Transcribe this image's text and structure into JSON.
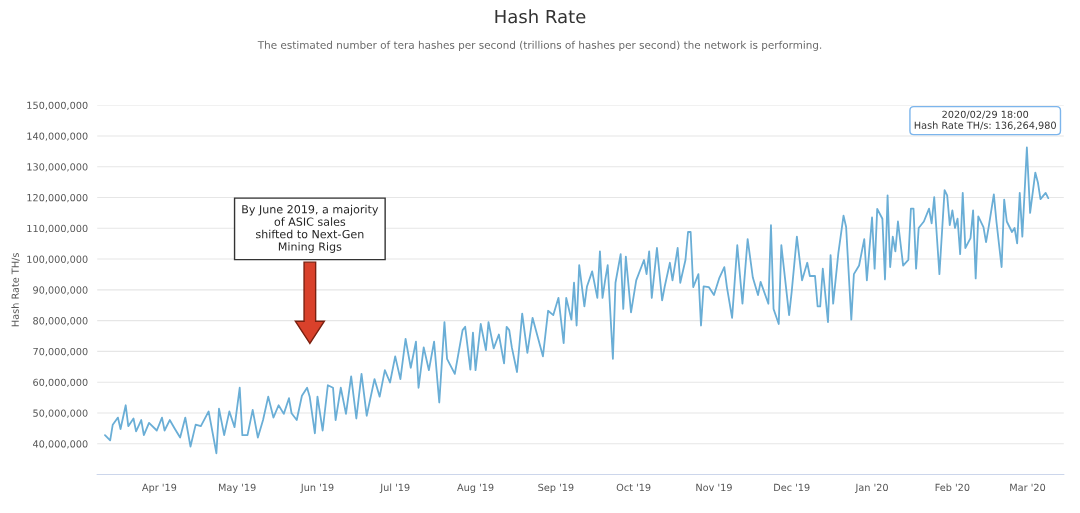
{
  "chart_data": {
    "type": "line",
    "title": "Hash Rate",
    "subtitle": "The estimated number of tera hashes per second (trillions of hashes per second) the network is performing.",
    "ylabel": "Hash Rate TH/s",
    "x": [
      "2019-03-11",
      "2019-03-13",
      "2019-03-14",
      "2019-03-16",
      "2019-03-17",
      "2019-03-19",
      "2019-03-20",
      "2019-03-22",
      "2019-03-23",
      "2019-03-25",
      "2019-03-26",
      "2019-03-28",
      "2019-03-31",
      "2019-04-02",
      "2019-04-03",
      "2019-04-05",
      "2019-04-07",
      "2019-04-09",
      "2019-04-11",
      "2019-04-13",
      "2019-04-15",
      "2019-04-17",
      "2019-04-20",
      "2019-04-23",
      "2019-04-24",
      "2019-04-26",
      "2019-04-28",
      "2019-04-30",
      "2019-05-02",
      "2019-05-03",
      "2019-05-05",
      "2019-05-07",
      "2019-05-09",
      "2019-05-11",
      "2019-05-13",
      "2019-05-15",
      "2019-05-17",
      "2019-05-19",
      "2019-05-21",
      "2019-05-22",
      "2019-05-24",
      "2019-05-26",
      "2019-05-28",
      "2019-05-29",
      "2019-05-31",
      "2019-06-01",
      "2019-06-03",
      "2019-06-05",
      "2019-06-07",
      "2019-06-08",
      "2019-06-10",
      "2019-06-12",
      "2019-06-14",
      "2019-06-16",
      "2019-06-18",
      "2019-06-20",
      "2019-06-23",
      "2019-06-25",
      "2019-06-27",
      "2019-06-29",
      "2019-07-01",
      "2019-07-03",
      "2019-07-05",
      "2019-07-07",
      "2019-07-09",
      "2019-07-10",
      "2019-07-12",
      "2019-07-14",
      "2019-07-16",
      "2019-07-18",
      "2019-07-20",
      "2019-07-21",
      "2019-07-24",
      "2019-07-27",
      "2019-07-28",
      "2019-07-30",
      "2019-07-31",
      "2019-08-01",
      "2019-08-03",
      "2019-08-05",
      "2019-08-06",
      "2019-08-08",
      "2019-08-10",
      "2019-08-12",
      "2019-08-13",
      "2019-08-14",
      "2019-08-15",
      "2019-08-17",
      "2019-08-19",
      "2019-08-21",
      "2019-08-23",
      "2019-08-27",
      "2019-08-29",
      "2019-08-31",
      "2019-09-02",
      "2019-09-04",
      "2019-09-05",
      "2019-09-07",
      "2019-09-08",
      "2019-09-09",
      "2019-09-10",
      "2019-09-12",
      "2019-09-13",
      "2019-09-15",
      "2019-09-17",
      "2019-09-18",
      "2019-09-19",
      "2019-09-20",
      "2019-09-21",
      "2019-09-23",
      "2019-09-24",
      "2019-09-26",
      "2019-09-27",
      "2019-09-28",
      "2019-09-30",
      "2019-10-02",
      "2019-10-05",
      "2019-10-06",
      "2019-10-07",
      "2019-10-08",
      "2019-10-10",
      "2019-10-12",
      "2019-10-13",
      "2019-10-15",
      "2019-10-16",
      "2019-10-18",
      "2019-10-19",
      "2019-10-21",
      "2019-10-22",
      "2019-10-23",
      "2019-10-24",
      "2019-10-26",
      "2019-10-27",
      "2019-10-28",
      "2019-10-30",
      "2019-11-01",
      "2019-11-03",
      "2019-11-05",
      "2019-11-06",
      "2019-11-08",
      "2019-11-10",
      "2019-11-12",
      "2019-11-14",
      "2019-11-16",
      "2019-11-18",
      "2019-11-19",
      "2019-11-22",
      "2019-11-23",
      "2019-11-24",
      "2019-11-26",
      "2019-11-27",
      "2019-11-30",
      "2019-12-01",
      "2019-12-03",
      "2019-12-05",
      "2019-12-07",
      "2019-12-08",
      "2019-12-10",
      "2019-12-11",
      "2019-12-12",
      "2019-12-13",
      "2019-12-15",
      "2019-12-16",
      "2019-12-17",
      "2019-12-19",
      "2019-12-21",
      "2019-12-22",
      "2019-12-24",
      "2019-12-25",
      "2019-12-27",
      "2019-12-29",
      "2019-12-30",
      "2020-01-01",
      "2020-01-02",
      "2020-01-03",
      "2020-01-05",
      "2020-01-06",
      "2020-01-07",
      "2020-01-08",
      "2020-01-09",
      "2020-01-10",
      "2020-01-11",
      "2020-01-13",
      "2020-01-15",
      "2020-01-16",
      "2020-01-17",
      "2020-01-18",
      "2020-01-19",
      "2020-01-21",
      "2020-01-23",
      "2020-01-24",
      "2020-01-25",
      "2020-01-27",
      "2020-01-29",
      "2020-01-30",
      "2020-01-31",
      "2020-02-01",
      "2020-02-02",
      "2020-02-03",
      "2020-02-04",
      "2020-02-05",
      "2020-02-06",
      "2020-02-08",
      "2020-02-09",
      "2020-02-10",
      "2020-02-11",
      "2020-02-13",
      "2020-02-14",
      "2020-02-15",
      "2020-02-17",
      "2020-02-18",
      "2020-02-20",
      "2020-02-21",
      "2020-02-22",
      "2020-02-24",
      "2020-02-25",
      "2020-02-26",
      "2020-02-27",
      "2020-02-28",
      "2020-02-29T18:00",
      "2020-03-02",
      "2020-03-04",
      "2020-03-05",
      "2020-03-06",
      "2020-03-08",
      "2020-03-09"
    ],
    "series": [
      {
        "color": "#6aaed6",
        "values": [
          42800000,
          41100000,
          46200000,
          48500000,
          44800000,
          52500000,
          45700000,
          48200000,
          44000000,
          47700000,
          42800000,
          46800000,
          44300000,
          48500000,
          44300000,
          47700000,
          44800000,
          42000000,
          48500000,
          39100000,
          46200000,
          45700000,
          50500000,
          36900000,
          51400000,
          42800000,
          50500000,
          45400000,
          58200000,
          42800000,
          42800000,
          51000000,
          42000000,
          47700000,
          55300000,
          48500000,
          52500000,
          49700000,
          54800000,
          49900000,
          47700000,
          55600000,
          58200000,
          55300000,
          43400000,
          55300000,
          44300000,
          59000000,
          58200000,
          47700000,
          58200000,
          49700000,
          61900000,
          48200000,
          62700000,
          49100000,
          61000000,
          55300000,
          63900000,
          59900000,
          68400000,
          61000000,
          74100000,
          64700000,
          73200000,
          58200000,
          71300000,
          63900000,
          73200000,
          53400000,
          79500000,
          67600000,
          62700000,
          76900000,
          78000000,
          64100000,
          76100000,
          63900000,
          78900000,
          70400000,
          79500000,
          71000000,
          75500000,
          66100000,
          78000000,
          76900000,
          71300000,
          63300000,
          82300000,
          69500000,
          80900000,
          68400000,
          83200000,
          81800000,
          87400000,
          72700000,
          87400000,
          80300000,
          92300000,
          78400000,
          98000000,
          84600000,
          91100000,
          96000000,
          87400000,
          102500000,
          87400000,
          93100000,
          98000000,
          67600000,
          92300000,
          101600000,
          83800000,
          100800000,
          82700000,
          93100000,
          99700000,
          95100000,
          102500000,
          87400000,
          103600000,
          86600000,
          91100000,
          98800000,
          93100000,
          103600000,
          92300000,
          99700000,
          108800000,
          108800000,
          90900000,
          95100000,
          78400000,
          91100000,
          90900000,
          88300000,
          93700000,
          97400000,
          90900000,
          80900000,
          104500000,
          85500000,
          106500000,
          94000000,
          88300000,
          92600000,
          85500000,
          111000000,
          83800000,
          78900000,
          104500000,
          81800000,
          89400000,
          107300000,
          93100000,
          98800000,
          94500000,
          94500000,
          84600000,
          84600000,
          96900000,
          79500000,
          101300000,
          85500000,
          101900000,
          114100000,
          110400000,
          80300000,
          95100000,
          97900000,
          106500000,
          93100000,
          113500000,
          96900000,
          116300000,
          113100000,
          93400000,
          120700000,
          97400000,
          107300000,
          102500000,
          112200000,
          97900000,
          99700000,
          116400000,
          116400000,
          96900000,
          110100000,
          112200000,
          116400000,
          111600000,
          120100000,
          95100000,
          122400000,
          120700000,
          111000000,
          115800000,
          110100000,
          113100000,
          101600000,
          121500000,
          103600000,
          106800000,
          115800000,
          93700000,
          113900000,
          110400000,
          105500000,
          110400000,
          121000000,
          112200000,
          97400000,
          119300000,
          112200000,
          108800000,
          110100000,
          105100000,
          121500000,
          107300000,
          136264980,
          115000000,
          128100000,
          124900000,
          119500000,
          121500000,
          119800000
        ]
      }
    ],
    "xlim": [
      "2019-03-08",
      "2020-03-15"
    ],
    "xticks": [
      {
        "value": "2019-04-01",
        "label": "Apr '19"
      },
      {
        "value": "2019-05-01",
        "label": "May '19"
      },
      {
        "value": "2019-06-01",
        "label": "Jun '19"
      },
      {
        "value": "2019-07-01",
        "label": "Jul '19"
      },
      {
        "value": "2019-08-01",
        "label": "Aug '19"
      },
      {
        "value": "2019-09-01",
        "label": "Sep '19"
      },
      {
        "value": "2019-10-01",
        "label": "Oct '19"
      },
      {
        "value": "2019-11-01",
        "label": "Nov '19"
      },
      {
        "value": "2019-12-01",
        "label": "Dec '19"
      },
      {
        "value": "2020-01-01",
        "label": "Jan '20"
      },
      {
        "value": "2020-02-01",
        "label": "Feb '20"
      },
      {
        "value": "2020-03-01",
        "label": "Mar '20"
      }
    ],
    "ylim": [
      30000000,
      150000000
    ],
    "yticks": [
      {
        "value": 40000000,
        "label": "40,000,000"
      },
      {
        "value": 50000000,
        "label": "50,000,000"
      },
      {
        "value": 60000000,
        "label": "60,000,000"
      },
      {
        "value": 70000000,
        "label": "70,000,000"
      },
      {
        "value": 80000000,
        "label": "80,000,000"
      },
      {
        "value": 90000000,
        "label": "90,000,000"
      },
      {
        "value": 100000000,
        "label": "100,000,000"
      },
      {
        "value": 110000000,
        "label": "110,000,000"
      },
      {
        "value": 120000000,
        "label": "120,000,000"
      },
      {
        "value": 130000000,
        "label": "130,000,000"
      },
      {
        "value": 140000000,
        "label": "140,000,000"
      },
      {
        "value": 150000000,
        "label": "150,000,000"
      }
    ],
    "grid": "y",
    "marker": "none",
    "line_style": "solid",
    "annotations": [
      "By June 2019, a majority\nof ASIC sales\nshifted to Next-Gen\nMining Rigs",
      {
        "text": "2020/02/29 18:00\nHash Rate TH/s: 136,264,980",
        "x": "2020-02-29T18:00",
        "y": 136264980
      }
    ]
  }
}
